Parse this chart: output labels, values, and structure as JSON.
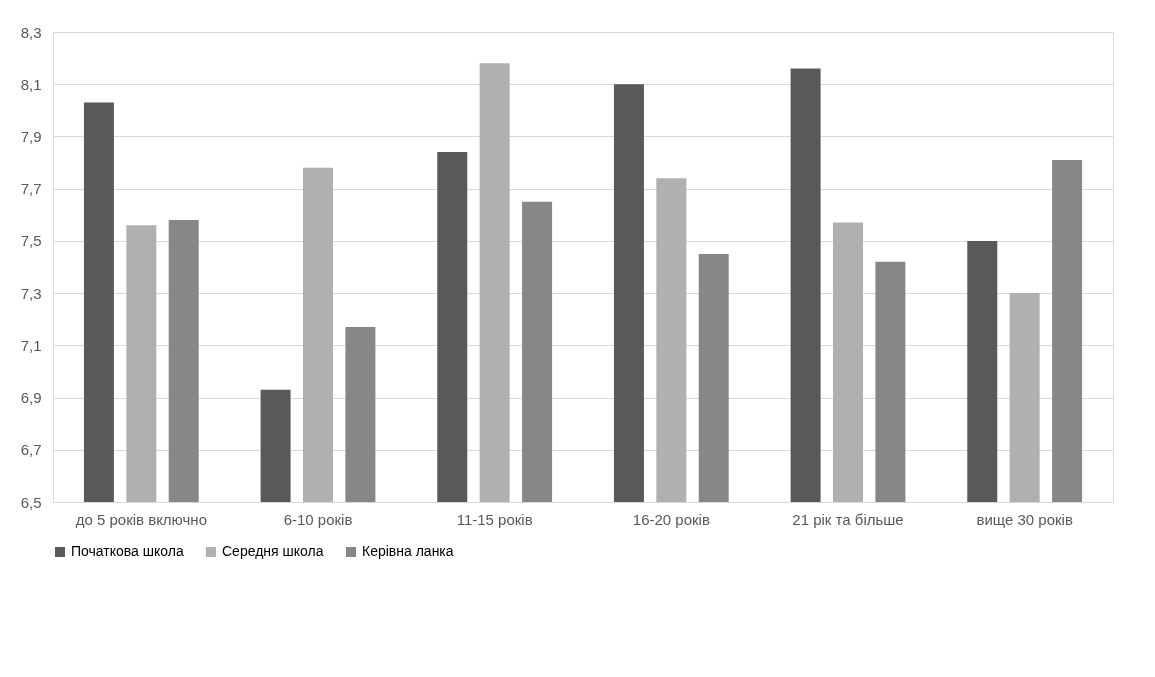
{
  "chart_data": {
    "type": "bar",
    "categories": [
      "до 5 років включно",
      "6-10 років",
      "11-15 років",
      "16-20 років",
      "21 рік та більше",
      "вище 30 років"
    ],
    "series": [
      {
        "name": "Початкова школа",
        "color": "#595959",
        "values": [
          8.03,
          6.93,
          7.84,
          8.1,
          8.16,
          7.5
        ]
      },
      {
        "name": "Середня школа",
        "color": "#b0b0b0",
        "values": [
          7.56,
          7.78,
          8.18,
          7.74,
          7.57,
          7.3
        ]
      },
      {
        "name": "Керівна ланка",
        "color": "#878787",
        "values": [
          7.58,
          7.17,
          7.65,
          7.45,
          7.42,
          7.81
        ]
      }
    ],
    "ylim": [
      6.5,
      8.3
    ],
    "yticks": [
      {
        "value": 6.5,
        "label": "6,5"
      },
      {
        "value": 6.7,
        "label": "6,7"
      },
      {
        "value": 6.9,
        "label": "6,9"
      },
      {
        "value": 7.1,
        "label": "7,1"
      },
      {
        "value": 7.3,
        "label": "7,3"
      },
      {
        "value": 7.5,
        "label": "7,5"
      },
      {
        "value": 7.7,
        "label": "7,7"
      },
      {
        "value": 7.9,
        "label": "7,9"
      },
      {
        "value": 8.1,
        "label": "8,1"
      },
      {
        "value": 8.3,
        "label": "8,3"
      }
    ],
    "grid": "y",
    "legend": "bottom"
  }
}
